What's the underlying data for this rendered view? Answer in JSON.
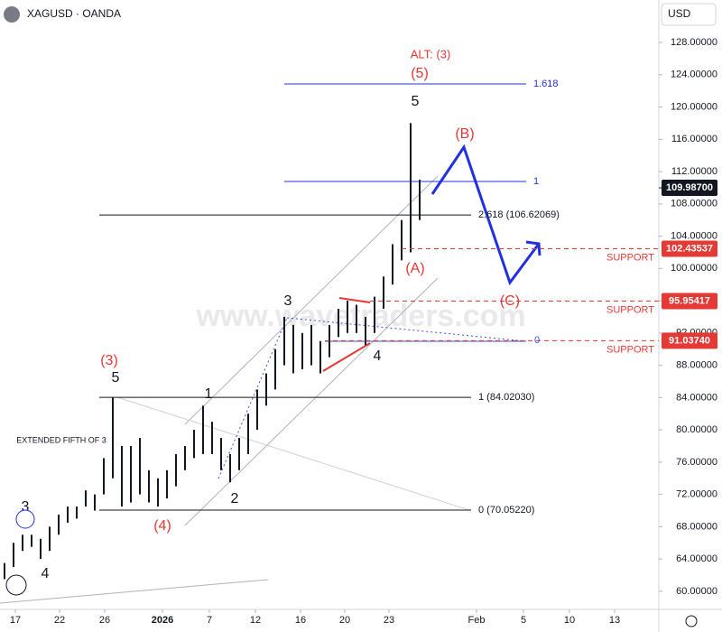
{
  "header": {
    "symbol": "XAGUSD · OANDA",
    "currency": "USD"
  },
  "chart_data": {
    "type": "ohlc",
    "xlim": [
      0,
      73
    ],
    "ylim": [
      57.75,
      133.26
    ],
    "xticks": [
      {
        "value": 1.7,
        "label": "17"
      },
      {
        "value": 6.6,
        "label": "22"
      },
      {
        "value": 11.6,
        "label": "26"
      },
      {
        "value": 18,
        "label": "2026"
      },
      {
        "value": 23.2,
        "label": "7"
      },
      {
        "value": 28.3,
        "label": "12"
      },
      {
        "value": 33.3,
        "label": "16"
      },
      {
        "value": 38.2,
        "label": "20"
      },
      {
        "value": 43.1,
        "label": "23"
      },
      {
        "value": 52.8,
        "label": "Feb"
      },
      {
        "value": 58,
        "label": "5"
      },
      {
        "value": 63.1,
        "label": "10"
      },
      {
        "value": 68.1,
        "label": "13"
      }
    ],
    "yticks": [
      {
        "value": 60,
        "label": "60.00000"
      },
      {
        "value": 64,
        "label": "64.00000"
      },
      {
        "value": 68,
        "label": "68.00000"
      },
      {
        "value": 72,
        "label": "72.00000"
      },
      {
        "value": 76,
        "label": "76.00000"
      },
      {
        "value": 80,
        "label": "80.00000"
      },
      {
        "value": 84,
        "label": "84.00000"
      },
      {
        "value": 88,
        "label": "88.00000"
      },
      {
        "value": 92,
        "label": "92.00000"
      },
      {
        "value": 96,
        "label": "96.00000"
      },
      {
        "value": 100,
        "label": "100.00000"
      },
      {
        "value": 104,
        "label": "104.00000"
      },
      {
        "value": 108,
        "label": "108.00000"
      },
      {
        "value": 112,
        "label": "112.00000"
      },
      {
        "value": 116,
        "label": "116.00000"
      },
      {
        "value": 120,
        "label": "120.00000"
      },
      {
        "value": 124,
        "label": "124.00000"
      },
      {
        "value": 128,
        "label": "128.00000"
      }
    ],
    "color": "#131722",
    "x": [
      0.5,
      1.5,
      2.5,
      3.5,
      4.5,
      5.5,
      6.5,
      7.5,
      8.5,
      9.5,
      10.5,
      11.5,
      12.5,
      13.5,
      14.5,
      15.5,
      16.5,
      17.5,
      18.5,
      19.5,
      20.5,
      21.5,
      22.5,
      23.5,
      24.5,
      25.5,
      26.5,
      27.5,
      28.5,
      29.5,
      30.5,
      31.5,
      32.5,
      33.5,
      34.5,
      35.5,
      36.5,
      37.5,
      38.5,
      39.5,
      40.5,
      41.5,
      42.5,
      43.5,
      44.5,
      45.5,
      46.5
    ],
    "high": [
      63.5,
      66,
      67,
      67,
      66.5,
      68,
      69.5,
      70.5,
      70.5,
      72.5,
      72,
      76.5,
      84,
      78,
      78,
      79,
      75,
      74,
      75,
      77,
      78,
      80,
      83,
      81,
      79,
      77,
      79,
      82,
      85,
      87,
      90,
      94,
      93,
      92,
      93,
      91,
      93,
      95,
      96,
      95.5,
      94,
      96.5,
      99,
      103,
      106,
      118,
      111
    ],
    "low": [
      61.5,
      63,
      65,
      65.5,
      64,
      65,
      67,
      68.5,
      69,
      70.5,
      70,
      72,
      74,
      70.5,
      71,
      72,
      71,
      70.5,
      71.5,
      73,
      75,
      76.5,
      77,
      77,
      75,
      73.5,
      75,
      77,
      80,
      83,
      85,
      88,
      87,
      87.5,
      88,
      87,
      89,
      91.5,
      92,
      92,
      90.5,
      92,
      95,
      98,
      101,
      102,
      106
    ],
    "last_price": {
      "value": 109.987,
      "label": "109.98700"
    },
    "supports": [
      {
        "value": 102.43537,
        "label": "102.43537",
        "text": "SUPPORT"
      },
      {
        "value": 95.95417,
        "label": "95.95417",
        "text": "SUPPORT"
      },
      {
        "value": 91.0374,
        "label": "91.03740",
        "text": "SUPPORT"
      }
    ],
    "fib_levels": [
      {
        "value": 122.85,
        "label": "1.618",
        "from": 31.5,
        "to": 58.3
      },
      {
        "value": 110.77,
        "label": "1",
        "from": 31.5,
        "to": 58.3
      },
      {
        "value": 106.62069,
        "label": "2.618 (106.62069)",
        "from": 11,
        "to": 52.2
      },
      {
        "value": 84.0203,
        "label": "1 (84.02030)",
        "from": 11,
        "to": 52.2
      },
      {
        "value": 70.0522,
        "label": "0 (70.05220)",
        "from": 11,
        "to": 52.2
      }
    ]
  },
  "wave_labels": [
    "ALT: (3)",
    "(5)",
    "5",
    "(B)",
    "(A)",
    "(C)",
    "3",
    "4",
    "(3)",
    "5",
    "1",
    "2",
    "(4)",
    "3",
    "4",
    "EXTENDED FIFTH OF 3",
    "0"
  ],
  "watermark": "www.wavetraders.com"
}
